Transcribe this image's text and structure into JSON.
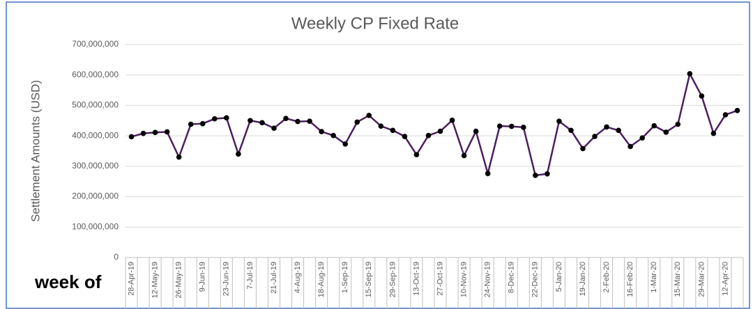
{
  "chart_data": {
    "type": "line",
    "title": "Weekly CP Fixed Rate",
    "y_label": "Settlement Amounts (USD)",
    "annotation": "week of",
    "categories": [
      "28-Apr-19",
      null,
      "12-May-19",
      null,
      "26-May-19",
      null,
      "9-Jun-19",
      null,
      "23-Jun-19",
      null,
      "7-Jul-19",
      null,
      "21-Jul-19",
      null,
      "4-Aug-19",
      null,
      "18-Aug-19",
      null,
      "1-Sep-19",
      null,
      "15-Sep-19",
      null,
      "29-Sep-19",
      null,
      "13-Oct-19",
      null,
      "27-Oct-19",
      null,
      "10-Nov-19",
      null,
      "24-Nov-19",
      null,
      "8-Dec-19",
      null,
      "22-Dec-19",
      null,
      "5-Jan-20",
      null,
      "19-Jan-20",
      null,
      "2-Feb-20",
      null,
      "16-Feb-20",
      null,
      "1-Mar-20",
      null,
      "15-Mar-20",
      null,
      "29-Mar-20",
      null,
      "12-Apr-20",
      null
    ],
    "series": [
      {
        "name": "Weekly CP Fixed Rate",
        "color": "#4b1f5e",
        "marker_color": "#000000",
        "values": [
          397000000,
          408000000,
          411000000,
          413000000,
          330000000,
          438000000,
          440000000,
          456000000,
          459000000,
          340000000,
          450000000,
          443000000,
          425000000,
          457000000,
          447000000,
          448000000,
          414000000,
          401000000,
          373000000,
          445000000,
          467000000,
          432000000,
          418000000,
          398000000,
          338000000,
          401000000,
          415000000,
          451000000,
          335000000,
          415000000,
          276000000,
          432000000,
          431000000,
          428000000,
          270000000,
          275000000,
          448000000,
          418000000,
          358000000,
          398000000,
          429000000,
          418000000,
          365000000,
          393000000,
          433000000,
          412000000,
          438000000,
          604000000,
          531000000,
          408000000,
          469000000,
          483000000
        ]
      }
    ],
    "ylim": [
      0,
      700000000
    ],
    "yticks": [
      0,
      {
        "value": 100000000,
        "label": "100,000,000"
      },
      {
        "value": 200000000,
        "label": "200,000,000"
      },
      {
        "value": 300000000,
        "label": "300,000,000"
      },
      {
        "value": 400000000,
        "label": "400,000,000"
      },
      {
        "value": 500000000,
        "label": "500,000,000"
      },
      {
        "value": 600000000,
        "label": "600,000,000"
      },
      {
        "value": 700000000,
        "label": "700,000,000"
      }
    ],
    "grid": true
  }
}
